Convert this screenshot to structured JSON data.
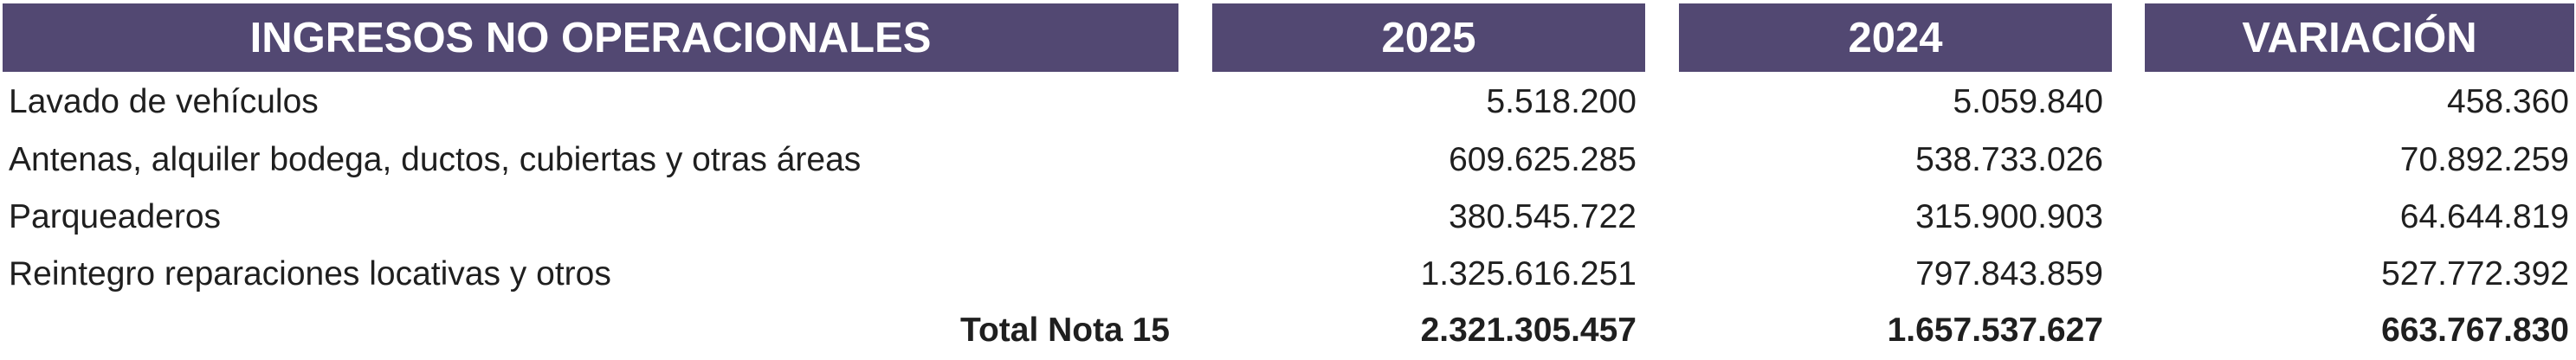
{
  "header": {
    "description": "INGRESOS NO OPERACIONALES",
    "year_current": "2025",
    "year_previous": "2024",
    "variation": "VARIACIÓN"
  },
  "rows": [
    {
      "label": "Lavado de vehículos",
      "v2025": "5.518.200",
      "v2024": "5.059.840",
      "variation": "458.360"
    },
    {
      "label": "Antenas, alquiler bodega, ductos, cubiertas y otras áreas",
      "v2025": "609.625.285",
      "v2024": "538.733.026",
      "variation": "70.892.259"
    },
    {
      "label": "Parqueaderos",
      "v2025": "380.545.722",
      "v2024": "315.900.903",
      "variation": "64.644.819"
    },
    {
      "label": "Reintegro reparaciones locativas y otros",
      "v2025": "1.325.616.251",
      "v2024": "797.843.859",
      "variation": "527.772.392"
    }
  ],
  "total": {
    "label": "Total Nota 15",
    "v2025": "2.321.305.457",
    "v2024": "1.657.537.627",
    "variation": "663.767.830"
  },
  "colors": {
    "header_background": "#524872",
    "header_text": "#ffffff"
  }
}
